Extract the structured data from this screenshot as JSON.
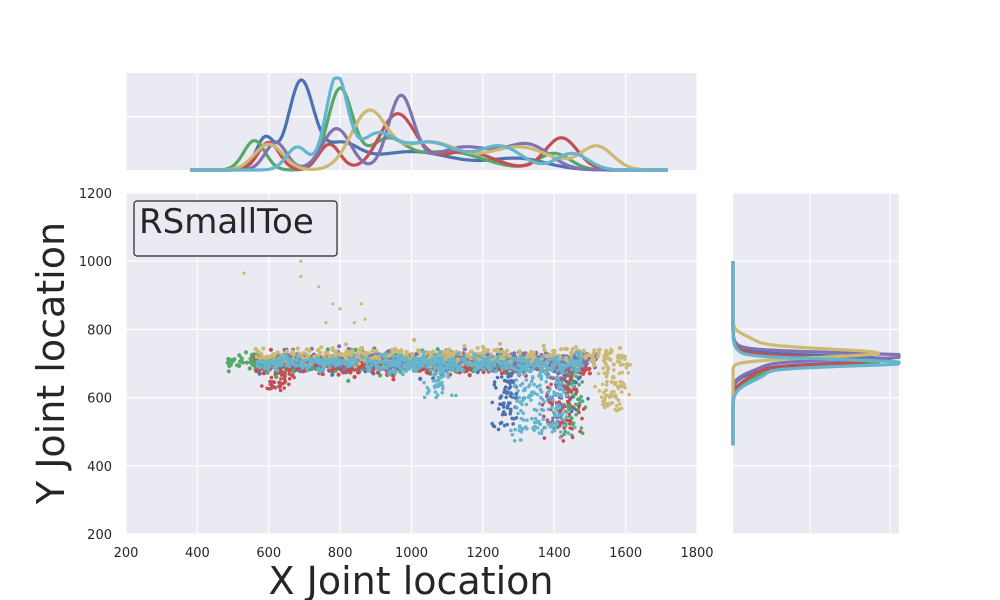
{
  "chart_data": {
    "type": "scatter",
    "legend_label": "RSmallToe",
    "xlabel": "X Joint location",
    "ylabel": "Y Joint location",
    "xlim": [
      200,
      1800
    ],
    "ylim": [
      200,
      1200
    ],
    "x_ticks": [
      200,
      400,
      600,
      800,
      1000,
      1200,
      1400,
      1600,
      1800
    ],
    "y_ticks": [
      200,
      400,
      600,
      800,
      1000,
      1200
    ],
    "grid": true,
    "marginals": {
      "top": "kde of x per series",
      "right": "kde of y per series"
    },
    "series": [
      {
        "name": "series-blue",
        "color": "#4C72B0",
        "trunk": {
          "x_range": [
            560,
            1260
          ],
          "y_center": 700,
          "y_spread": 18
        },
        "drops": [
          {
            "x": 1270,
            "y_from": 690,
            "y_to": 500
          },
          {
            "x": 1280,
            "y_from": 690,
            "y_to": 520
          },
          {
            "x": 1460,
            "y_from": 700,
            "y_to": 560
          }
        ],
        "x_kde": {
          "peaks": [
            [
              690,
              0.95,
              35
            ],
            [
              590,
              0.35,
              25
            ],
            [
              800,
              0.25,
              50
            ],
            [
              1000,
              0.2,
              120
            ],
            [
              1300,
              0.12,
              80
            ]
          ]
        },
        "y_kde": {
          "peaks": [
            [
              712,
              0.55,
              10
            ],
            [
              700,
              0.15,
              25
            ]
          ]
        }
      },
      {
        "name": "series-green",
        "color": "#55A868",
        "trunk": {
          "x_range": [
            480,
            1480
          ],
          "y_center": 700,
          "y_spread": 22
        },
        "drops": [
          {
            "x": 1440,
            "y_from": 690,
            "y_to": 500
          },
          {
            "x": 1460,
            "y_from": 700,
            "y_to": 480
          }
        ],
        "x_kde": {
          "peaks": [
            [
              800,
              0.88,
              35
            ],
            [
              560,
              0.32,
              30
            ],
            [
              930,
              0.3,
              50
            ],
            [
              1100,
              0.2,
              100
            ],
            [
              1400,
              0.18,
              45
            ]
          ]
        },
        "y_kde": {
          "peaks": [
            [
              705,
              0.5,
              10
            ],
            [
              690,
              0.15,
              30
            ]
          ]
        }
      },
      {
        "name": "series-red",
        "color": "#C44E52",
        "trunk": {
          "x_range": [
            560,
            1500
          ],
          "y_center": 695,
          "y_spread": 22
        },
        "drops": [
          {
            "x": 640,
            "y_from": 680,
            "y_to": 620
          },
          {
            "x": 1410,
            "y_from": 690,
            "y_to": 480
          },
          {
            "x": 1450,
            "y_from": 690,
            "y_to": 470
          }
        ],
        "x_kde": {
          "peaks": [
            [
              600,
              0.3,
              30
            ],
            [
              770,
              0.28,
              30
            ],
            [
              960,
              0.6,
              50
            ],
            [
              1150,
              0.2,
              80
            ],
            [
              1420,
              0.35,
              45
            ]
          ]
        },
        "y_kde": {
          "peaks": [
            [
              708,
              0.48,
              10
            ],
            [
              690,
              0.12,
              30
            ]
          ]
        }
      },
      {
        "name": "series-purple",
        "color": "#8172B2",
        "trunk": {
          "x_range": [
            620,
            1520
          ],
          "y_center": 712,
          "y_spread": 20
        },
        "drops": [
          {
            "x": 1420,
            "y_from": 700,
            "y_to": 520
          }
        ],
        "x_kde": {
          "peaks": [
            [
              620,
              0.3,
              30
            ],
            [
              790,
              0.45,
              40
            ],
            [
              970,
              0.78,
              35
            ],
            [
              1150,
              0.25,
              90
            ],
            [
              1330,
              0.25,
              60
            ]
          ]
        },
        "y_kde": {
          "peaks": [
            [
              722,
              0.68,
              9
            ],
            [
              705,
              0.15,
              25
            ]
          ]
        }
      },
      {
        "name": "series-yellow",
        "color": "#CCB974",
        "trunk": {
          "x_range": [
            560,
            1600
          ],
          "y_center": 720,
          "y_spread": 22
        },
        "drops": [
          {
            "x": 1560,
            "y_from": 700,
            "y_to": 570
          },
          {
            "x": 1590,
            "y_from": 720,
            "y_to": 560
          }
        ],
        "outliers": [
          [
            530,
            965
          ],
          [
            690,
            1000
          ],
          [
            690,
            955
          ],
          [
            740,
            925
          ],
          [
            780,
            875
          ],
          [
            800,
            860
          ],
          [
            840,
            820
          ],
          [
            860,
            875
          ],
          [
            870,
            830
          ],
          [
            760,
            820
          ]
        ],
        "x_kde": {
          "peaks": [
            [
              600,
              0.28,
              40
            ],
            [
              880,
              0.62,
              50
            ],
            [
              1050,
              0.3,
              80
            ],
            [
              1300,
              0.25,
              90
            ],
            [
              1520,
              0.25,
              45
            ]
          ]
        },
        "y_kde": {
          "peaks": [
            [
              730,
              0.6,
              12
            ],
            [
              760,
              0.1,
              20
            ]
          ]
        }
      },
      {
        "name": "series-cyan",
        "color": "#64B5CD",
        "trunk": {
          "x_range": [
            560,
            1480
          ],
          "y_center": 700,
          "y_spread": 20
        },
        "drops": [
          {
            "x": 1080,
            "y_from": 690,
            "y_to": 600
          },
          {
            "x": 1320,
            "y_from": 690,
            "y_to": 470
          },
          {
            "x": 1350,
            "y_from": 690,
            "y_to": 490
          },
          {
            "x": 1380,
            "y_from": 690,
            "y_to": 480
          },
          {
            "x": 1420,
            "y_from": 700,
            "y_to": 480
          }
        ],
        "x_kde": {
          "peaks": [
            [
              790,
              1.0,
              30
            ],
            [
              680,
              0.25,
              30
            ],
            [
              900,
              0.35,
              50
            ],
            [
              1050,
              0.3,
              80
            ],
            [
              1250,
              0.25,
              60
            ],
            [
              1450,
              0.18,
              45
            ]
          ]
        },
        "y_kde": {
          "peaks": [
            [
              702,
              0.65,
              9
            ],
            [
              680,
              0.15,
              30
            ]
          ]
        }
      }
    ]
  }
}
